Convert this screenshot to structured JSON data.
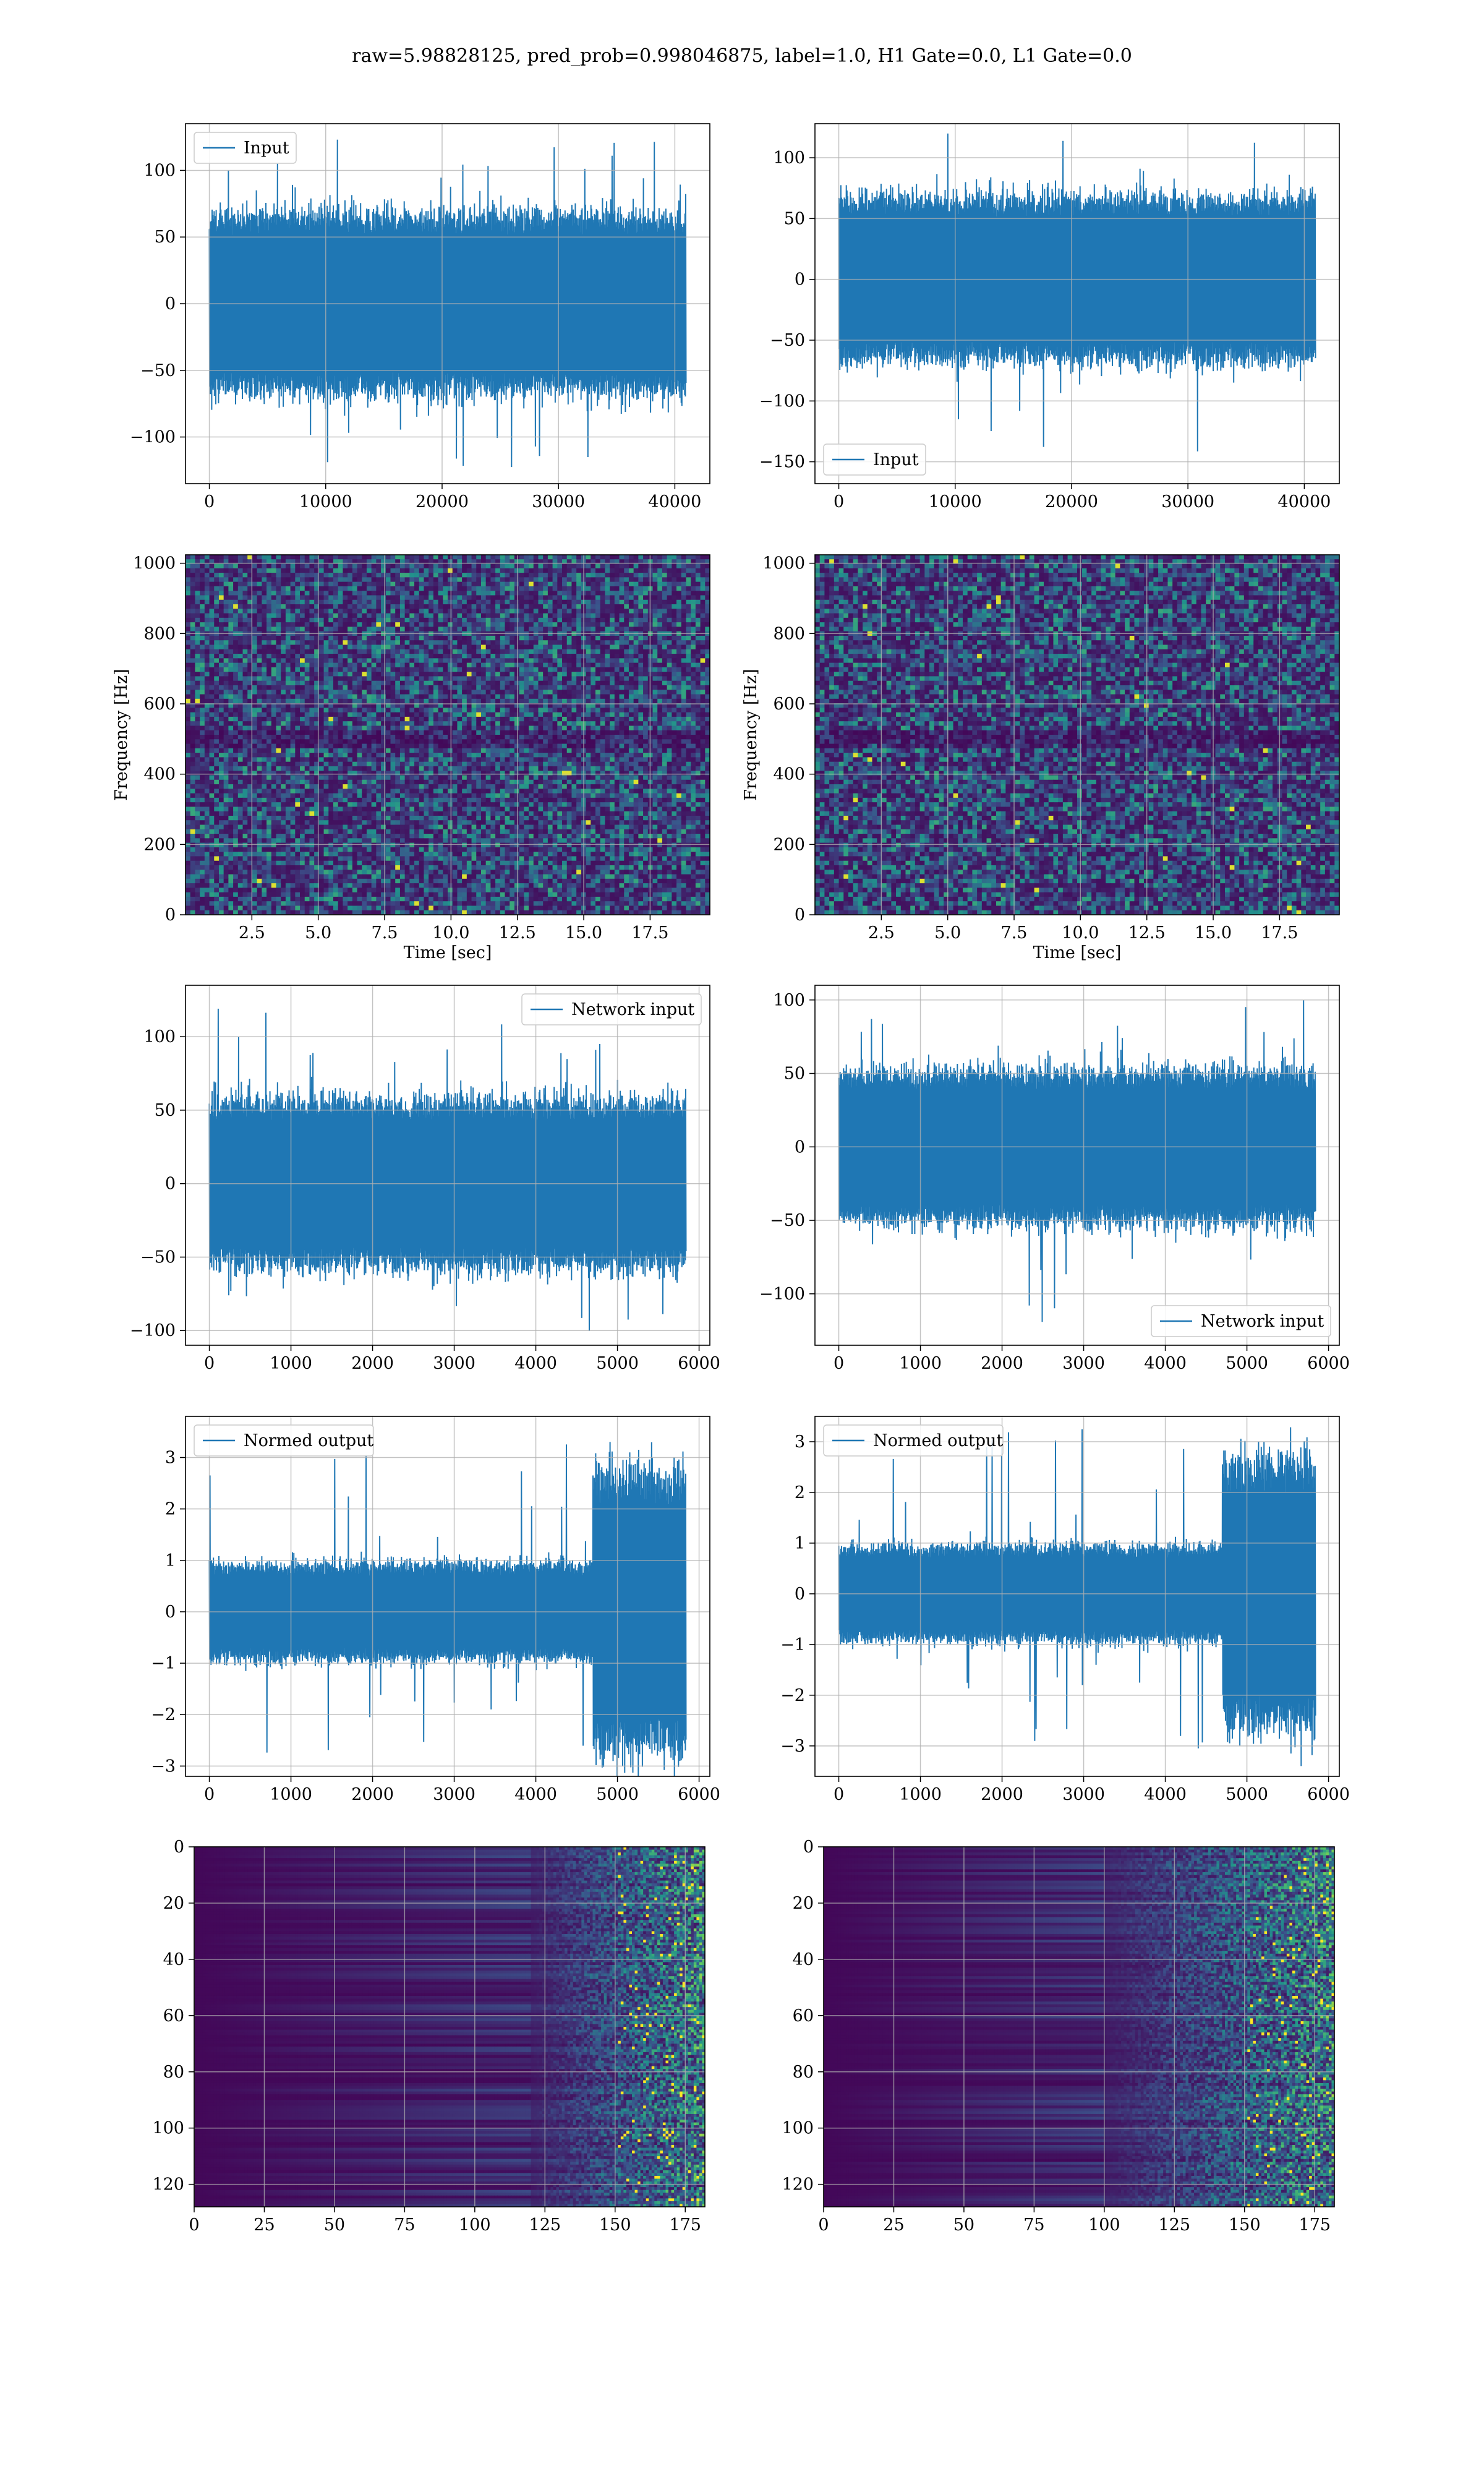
{
  "figure": {
    "title": "raw=5.98828125, pred_prob=0.998046875, label=1.0, H1 Gate=0.0, L1 Gate=0.0",
    "colors": {
      "line": "#1f77b4",
      "grid": "#b0b0b0",
      "viridis_low": "#440154",
      "viridis_mid": "#31688e",
      "viridis_high": "#fde725"
    }
  },
  "chart_data": [
    {
      "id": "h1-input",
      "type": "line",
      "legend": "Input",
      "legend_position": "upper-left",
      "grid": true,
      "x_range": [
        0,
        40960
      ],
      "ylim": [
        -135,
        135
      ],
      "amplitude": 65,
      "peak_max": 125,
      "peak_min": -128,
      "x_ticks": [
        "0",
        "10000",
        "20000",
        "30000",
        "40000"
      ],
      "y_ticks": [
        "100",
        "50",
        "0",
        "−50",
        "−100"
      ]
    },
    {
      "id": "l1-input",
      "type": "line",
      "legend": "Input",
      "legend_position": "lower-left",
      "grid": true,
      "x_range": [
        0,
        40960
      ],
      "ylim": [
        -168,
        128
      ],
      "amplitude": 65,
      "peak_max": 125,
      "peak_min": -155,
      "x_ticks": [
        "0",
        "10000",
        "20000",
        "30000",
        "40000"
      ],
      "y_ticks": [
        "100",
        "50",
        "0",
        "−50",
        "−100",
        "−150"
      ]
    },
    {
      "id": "h1-spectrogram",
      "type": "heatmap",
      "colormap": "viridis",
      "grid": true,
      "x_range": [
        0,
        19.75
      ],
      "ylim": [
        0,
        1024
      ],
      "x_ticks": [
        "2.5",
        "5.0",
        "7.5",
        "10.0",
        "12.5",
        "15.0",
        "17.5"
      ],
      "y_ticks": [
        "1000",
        "800",
        "600",
        "400",
        "200",
        "0"
      ],
      "xlabel": "Time [sec]",
      "ylabel": "Frequency [Hz]"
    },
    {
      "id": "l1-spectrogram",
      "type": "heatmap",
      "colormap": "viridis",
      "grid": true,
      "x_range": [
        0,
        19.75
      ],
      "ylim": [
        0,
        1024
      ],
      "x_ticks": [
        "2.5",
        "5.0",
        "7.5",
        "10.0",
        "12.5",
        "15.0",
        "17.5"
      ],
      "y_ticks": [
        "1000",
        "800",
        "600",
        "400",
        "200",
        "0"
      ],
      "xlabel": "Time [sec]",
      "ylabel": "Frequency [Hz]"
    },
    {
      "id": "h1-network-input",
      "type": "line",
      "legend": "Network input",
      "legend_position": "upper-right",
      "grid": true,
      "x_range": [
        0,
        5840
      ],
      "ylim": [
        -110,
        135
      ],
      "amplitude": 55,
      "peak_max": 122,
      "peak_min": -102,
      "x_ticks": [
        "0",
        "1000",
        "2000",
        "3000",
        "4000",
        "5000",
        "6000"
      ],
      "y_ticks": [
        "100",
        "50",
        "0",
        "−50",
        "−100"
      ]
    },
    {
      "id": "l1-network-input",
      "type": "line",
      "legend": "Network input",
      "legend_position": "lower-right",
      "grid": true,
      "x_range": [
        0,
        5840
      ],
      "ylim": [
        -135,
        110
      ],
      "amplitude": 50,
      "peak_max": 100,
      "peak_min": -122,
      "x_ticks": [
        "0",
        "1000",
        "2000",
        "3000",
        "4000",
        "5000",
        "6000"
      ],
      "y_ticks": [
        "100",
        "50",
        "0",
        "−50",
        "−100"
      ]
    },
    {
      "id": "h1-normed-output",
      "type": "line",
      "legend": "Normed output",
      "legend_position": "upper-left",
      "grid": true,
      "x_range": [
        0,
        5840
      ],
      "ylim": [
        -3.2,
        3.8
      ],
      "amplitude": 0.9,
      "burst_start": 4700,
      "burst_amplitude": 2.6,
      "peak_max": 3.5,
      "peak_min": -2.9,
      "x_ticks": [
        "0",
        "1000",
        "2000",
        "3000",
        "4000",
        "5000",
        "6000"
      ],
      "y_ticks": [
        "3",
        "2",
        "1",
        "0",
        "−1",
        "−2",
        "−3"
      ]
    },
    {
      "id": "l1-normed-output",
      "type": "line",
      "legend": "Normed output",
      "legend_position": "upper-left",
      "grid": true,
      "x_range": [
        0,
        5840
      ],
      "ylim": [
        -3.6,
        3.5
      ],
      "amplitude": 0.9,
      "burst_start": 4700,
      "burst_amplitude": 2.5,
      "peak_max": 3.3,
      "peak_min": -3.4,
      "x_ticks": [
        "0",
        "1000",
        "2000",
        "3000",
        "4000",
        "5000",
        "6000"
      ],
      "y_ticks": [
        "3",
        "2",
        "1",
        "0",
        "−1",
        "−2",
        "−3"
      ]
    },
    {
      "id": "h1-feature-map",
      "type": "heatmap",
      "colormap": "viridis",
      "grid": true,
      "x_range": [
        0,
        182
      ],
      "ylim": [
        128,
        0
      ],
      "activity_start": 120,
      "x_ticks": [
        "0",
        "25",
        "50",
        "75",
        "100",
        "125",
        "150",
        "175"
      ],
      "y_ticks": [
        "0",
        "20",
        "40",
        "60",
        "80",
        "100",
        "120"
      ]
    },
    {
      "id": "l1-feature-map",
      "type": "heatmap",
      "colormap": "viridis",
      "grid": true,
      "x_range": [
        0,
        182
      ],
      "ylim": [
        128,
        0
      ],
      "activity_start": 100,
      "x_ticks": [
        "0",
        "25",
        "50",
        "75",
        "100",
        "125",
        "150",
        "175"
      ],
      "y_ticks": [
        "0",
        "20",
        "40",
        "60",
        "80",
        "100",
        "120"
      ]
    }
  ]
}
